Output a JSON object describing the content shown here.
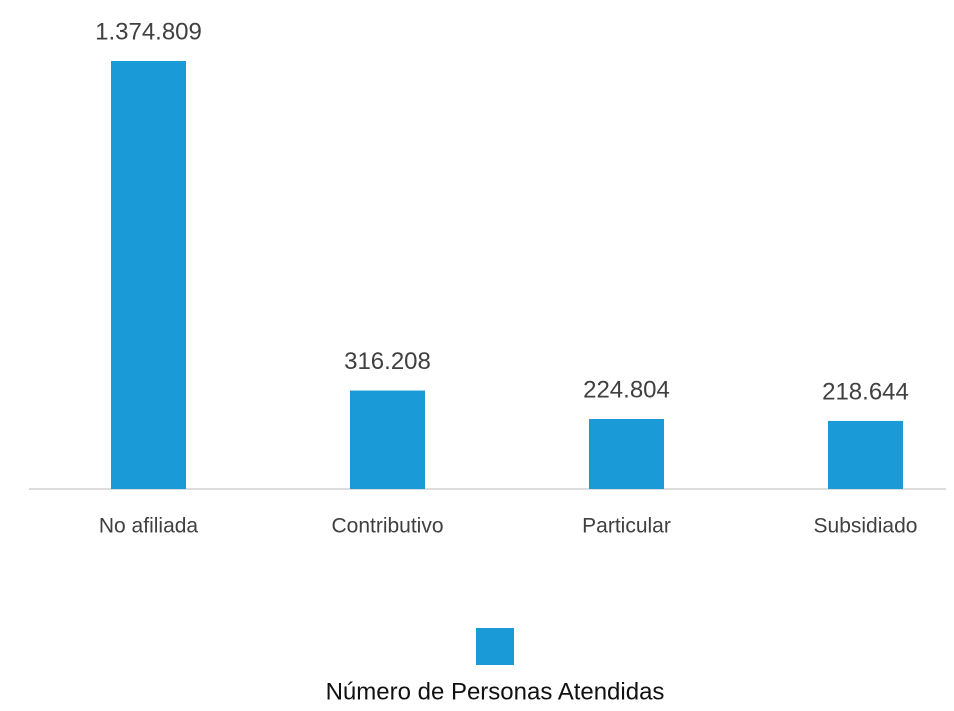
{
  "chart_data": {
    "type": "bar",
    "categories": [
      "No afiliada",
      "Contributivo",
      "Particular",
      "Subsidiado"
    ],
    "series": [
      {
        "name": "Número de Personas Atendidas",
        "color": "#1a9ad6",
        "values": [
          1374809,
          316208,
          224804,
          218644
        ],
        "value_labels": [
          "1.374.809",
          "316.208",
          "224.804",
          "218.644"
        ]
      }
    ],
    "legend": "bottom"
  }
}
